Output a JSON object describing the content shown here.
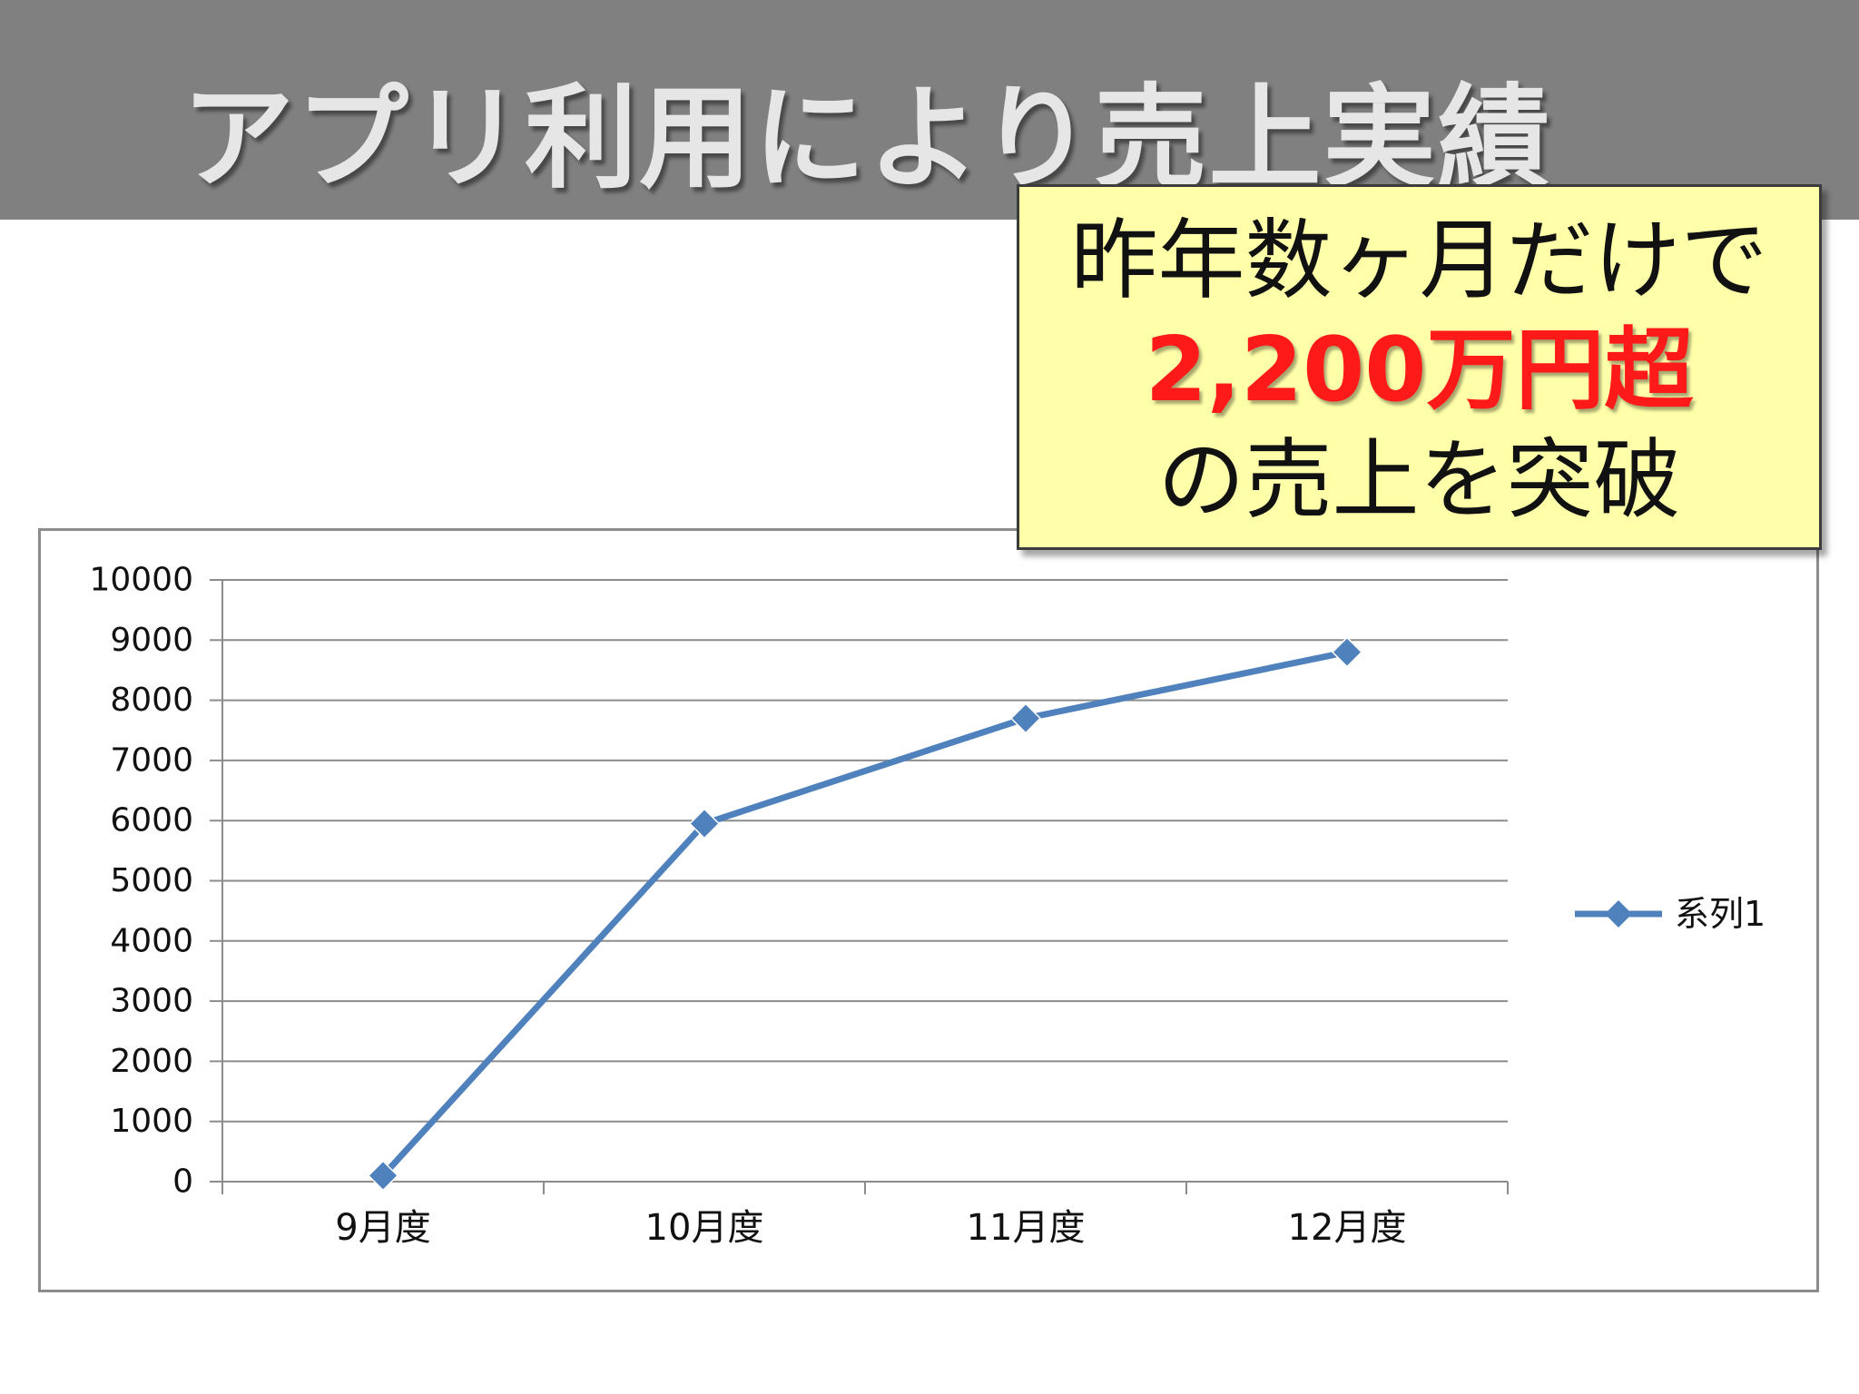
{
  "slide": {
    "title": "アプリ利用により売上実績"
  },
  "callout": {
    "line1": "昨年数ヶ月だけで",
    "highlight": "2,200万円超",
    "line3": "の売上を突破"
  },
  "colors": {
    "banner": "#808080",
    "title_text": "#e6e6e6",
    "callout_bg": "#ffffaa",
    "highlight": "#ff1a1a",
    "series": "#4f81bd",
    "gridline": "#8c8c8c"
  },
  "chart_data": {
    "type": "line",
    "title": "",
    "xlabel": "",
    "ylabel": "",
    "categories": [
      "9月度",
      "10月度",
      "11月度",
      "12月度"
    ],
    "series": [
      {
        "name": "系列1",
        "values": [
          100,
          5950,
          7700,
          8800
        ],
        "color": "#4f81bd",
        "marker": "diamond"
      }
    ],
    "ylim": [
      0,
      10000
    ],
    "yticks": [
      "0",
      "1000",
      "2000",
      "3000",
      "4000",
      "5000",
      "6000",
      "7000",
      "8000",
      "9000",
      "10000"
    ],
    "grid": true,
    "legend": "right"
  }
}
